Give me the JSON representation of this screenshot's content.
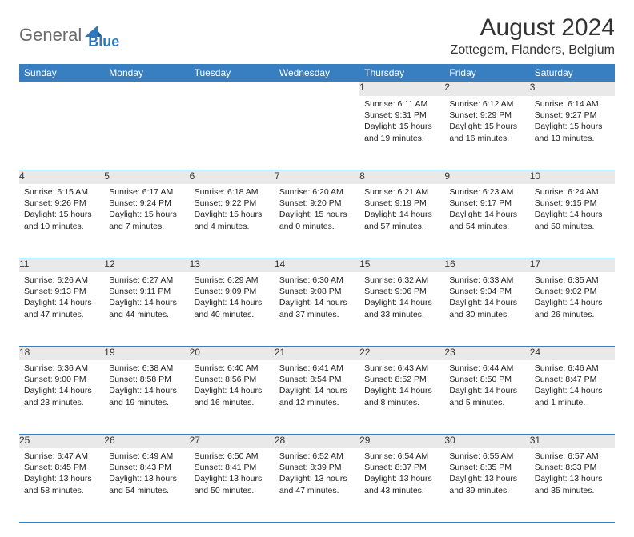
{
  "brand": {
    "gray": "General",
    "blue": "Blue"
  },
  "title": "August 2024",
  "location": "Zottegem, Flanders, Belgium",
  "colors": {
    "header_bg": "#377fc0",
    "header_text": "#ffffff",
    "daynum_bg": "#e9e9e9",
    "rule": "#377fc0",
    "logo_gray": "#6b6b6b",
    "logo_blue": "#2f77bb"
  },
  "weekdays": [
    "Sunday",
    "Monday",
    "Tuesday",
    "Wednesday",
    "Thursday",
    "Friday",
    "Saturday"
  ],
  "weeks": [
    [
      null,
      null,
      null,
      null,
      {
        "n": "1",
        "sr": "6:11 AM",
        "ss": "9:31 PM",
        "dl": "15 hours and 19 minutes."
      },
      {
        "n": "2",
        "sr": "6:12 AM",
        "ss": "9:29 PM",
        "dl": "15 hours and 16 minutes."
      },
      {
        "n": "3",
        "sr": "6:14 AM",
        "ss": "9:27 PM",
        "dl": "15 hours and 13 minutes."
      }
    ],
    [
      {
        "n": "4",
        "sr": "6:15 AM",
        "ss": "9:26 PM",
        "dl": "15 hours and 10 minutes."
      },
      {
        "n": "5",
        "sr": "6:17 AM",
        "ss": "9:24 PM",
        "dl": "15 hours and 7 minutes."
      },
      {
        "n": "6",
        "sr": "6:18 AM",
        "ss": "9:22 PM",
        "dl": "15 hours and 4 minutes."
      },
      {
        "n": "7",
        "sr": "6:20 AM",
        "ss": "9:20 PM",
        "dl": "15 hours and 0 minutes."
      },
      {
        "n": "8",
        "sr": "6:21 AM",
        "ss": "9:19 PM",
        "dl": "14 hours and 57 minutes."
      },
      {
        "n": "9",
        "sr": "6:23 AM",
        "ss": "9:17 PM",
        "dl": "14 hours and 54 minutes."
      },
      {
        "n": "10",
        "sr": "6:24 AM",
        "ss": "9:15 PM",
        "dl": "14 hours and 50 minutes."
      }
    ],
    [
      {
        "n": "11",
        "sr": "6:26 AM",
        "ss": "9:13 PM",
        "dl": "14 hours and 47 minutes."
      },
      {
        "n": "12",
        "sr": "6:27 AM",
        "ss": "9:11 PM",
        "dl": "14 hours and 44 minutes."
      },
      {
        "n": "13",
        "sr": "6:29 AM",
        "ss": "9:09 PM",
        "dl": "14 hours and 40 minutes."
      },
      {
        "n": "14",
        "sr": "6:30 AM",
        "ss": "9:08 PM",
        "dl": "14 hours and 37 minutes."
      },
      {
        "n": "15",
        "sr": "6:32 AM",
        "ss": "9:06 PM",
        "dl": "14 hours and 33 minutes."
      },
      {
        "n": "16",
        "sr": "6:33 AM",
        "ss": "9:04 PM",
        "dl": "14 hours and 30 minutes."
      },
      {
        "n": "17",
        "sr": "6:35 AM",
        "ss": "9:02 PM",
        "dl": "14 hours and 26 minutes."
      }
    ],
    [
      {
        "n": "18",
        "sr": "6:36 AM",
        "ss": "9:00 PM",
        "dl": "14 hours and 23 minutes."
      },
      {
        "n": "19",
        "sr": "6:38 AM",
        "ss": "8:58 PM",
        "dl": "14 hours and 19 minutes."
      },
      {
        "n": "20",
        "sr": "6:40 AM",
        "ss": "8:56 PM",
        "dl": "14 hours and 16 minutes."
      },
      {
        "n": "21",
        "sr": "6:41 AM",
        "ss": "8:54 PM",
        "dl": "14 hours and 12 minutes."
      },
      {
        "n": "22",
        "sr": "6:43 AM",
        "ss": "8:52 PM",
        "dl": "14 hours and 8 minutes."
      },
      {
        "n": "23",
        "sr": "6:44 AM",
        "ss": "8:50 PM",
        "dl": "14 hours and 5 minutes."
      },
      {
        "n": "24",
        "sr": "6:46 AM",
        "ss": "8:47 PM",
        "dl": "14 hours and 1 minute."
      }
    ],
    [
      {
        "n": "25",
        "sr": "6:47 AM",
        "ss": "8:45 PM",
        "dl": "13 hours and 58 minutes."
      },
      {
        "n": "26",
        "sr": "6:49 AM",
        "ss": "8:43 PM",
        "dl": "13 hours and 54 minutes."
      },
      {
        "n": "27",
        "sr": "6:50 AM",
        "ss": "8:41 PM",
        "dl": "13 hours and 50 minutes."
      },
      {
        "n": "28",
        "sr": "6:52 AM",
        "ss": "8:39 PM",
        "dl": "13 hours and 47 minutes."
      },
      {
        "n": "29",
        "sr": "6:54 AM",
        "ss": "8:37 PM",
        "dl": "13 hours and 43 minutes."
      },
      {
        "n": "30",
        "sr": "6:55 AM",
        "ss": "8:35 PM",
        "dl": "13 hours and 39 minutes."
      },
      {
        "n": "31",
        "sr": "6:57 AM",
        "ss": "8:33 PM",
        "dl": "13 hours and 35 minutes."
      }
    ]
  ],
  "labels": {
    "sunrise": "Sunrise:",
    "sunset": "Sunset:",
    "daylight": "Daylight:"
  }
}
